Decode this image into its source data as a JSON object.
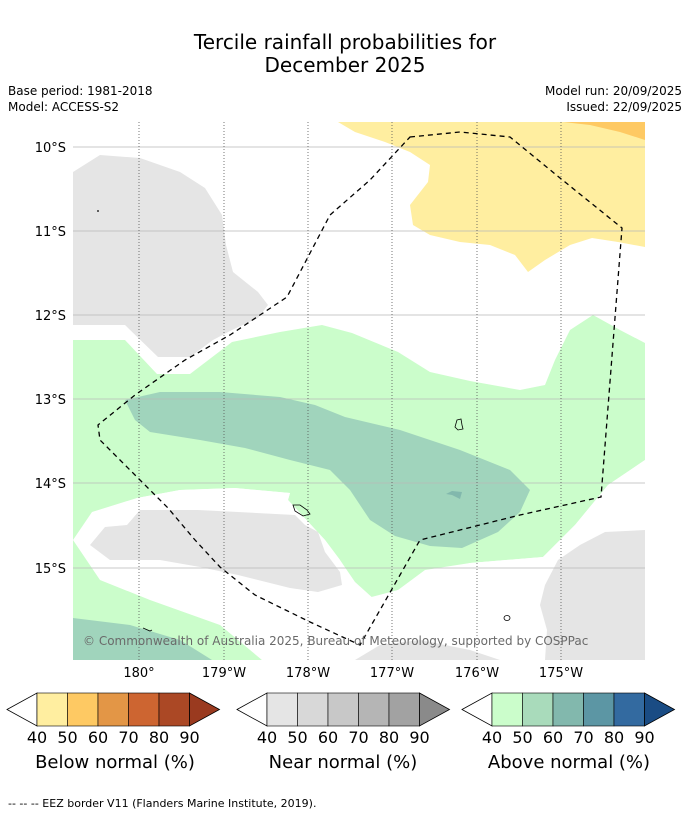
{
  "title": {
    "line1": "Tercile rainfall probabilities for",
    "line2": "December 2025"
  },
  "meta": {
    "base_period": "Base period: 1981-2018",
    "model": "Model: ACCESS-S2",
    "model_run": "Model run: 20/09/2025",
    "issued": "Issued: 22/09/2025"
  },
  "map": {
    "lat_labels": [
      "10°S",
      "11°S",
      "12°S",
      "13°S",
      "14°S",
      "15°S"
    ],
    "lon_labels": [
      "180°",
      "179°W",
      "178°W",
      "177°W",
      "176°W",
      "175°W"
    ],
    "copyright": "© Commonwealth of Australia 2025, Bureau of Meteorology, supported by COSPPac"
  },
  "legends": [
    {
      "label": "Below normal (%)",
      "ticks": [
        "40",
        "50",
        "60",
        "70",
        "80",
        "90"
      ],
      "colors": [
        "#ffeea0",
        "#fec963",
        "#e39646",
        "#cd6531",
        "#ab4825",
        "#9a3a1f"
      ]
    },
    {
      "label": "Near normal (%)",
      "ticks": [
        "40",
        "50",
        "60",
        "70",
        "80",
        "90"
      ],
      "colors": [
        "#e5e5e5",
        "#d8d8d8",
        "#c8c8c8",
        "#b5b5b5",
        "#a2a2a2",
        "#8a8a8a"
      ]
    },
    {
      "label": "Above normal (%)",
      "ticks": [
        "40",
        "50",
        "60",
        "70",
        "80",
        "90"
      ],
      "colors": [
        "#cbfdcb",
        "#a9dbbb",
        "#82b8ad",
        "#5c96a4",
        "#336aa0",
        "#1a4c84"
      ]
    }
  ],
  "footnote": "--  --  -- EEZ border V11 (Flanders Marine Institute, 2019)."
}
